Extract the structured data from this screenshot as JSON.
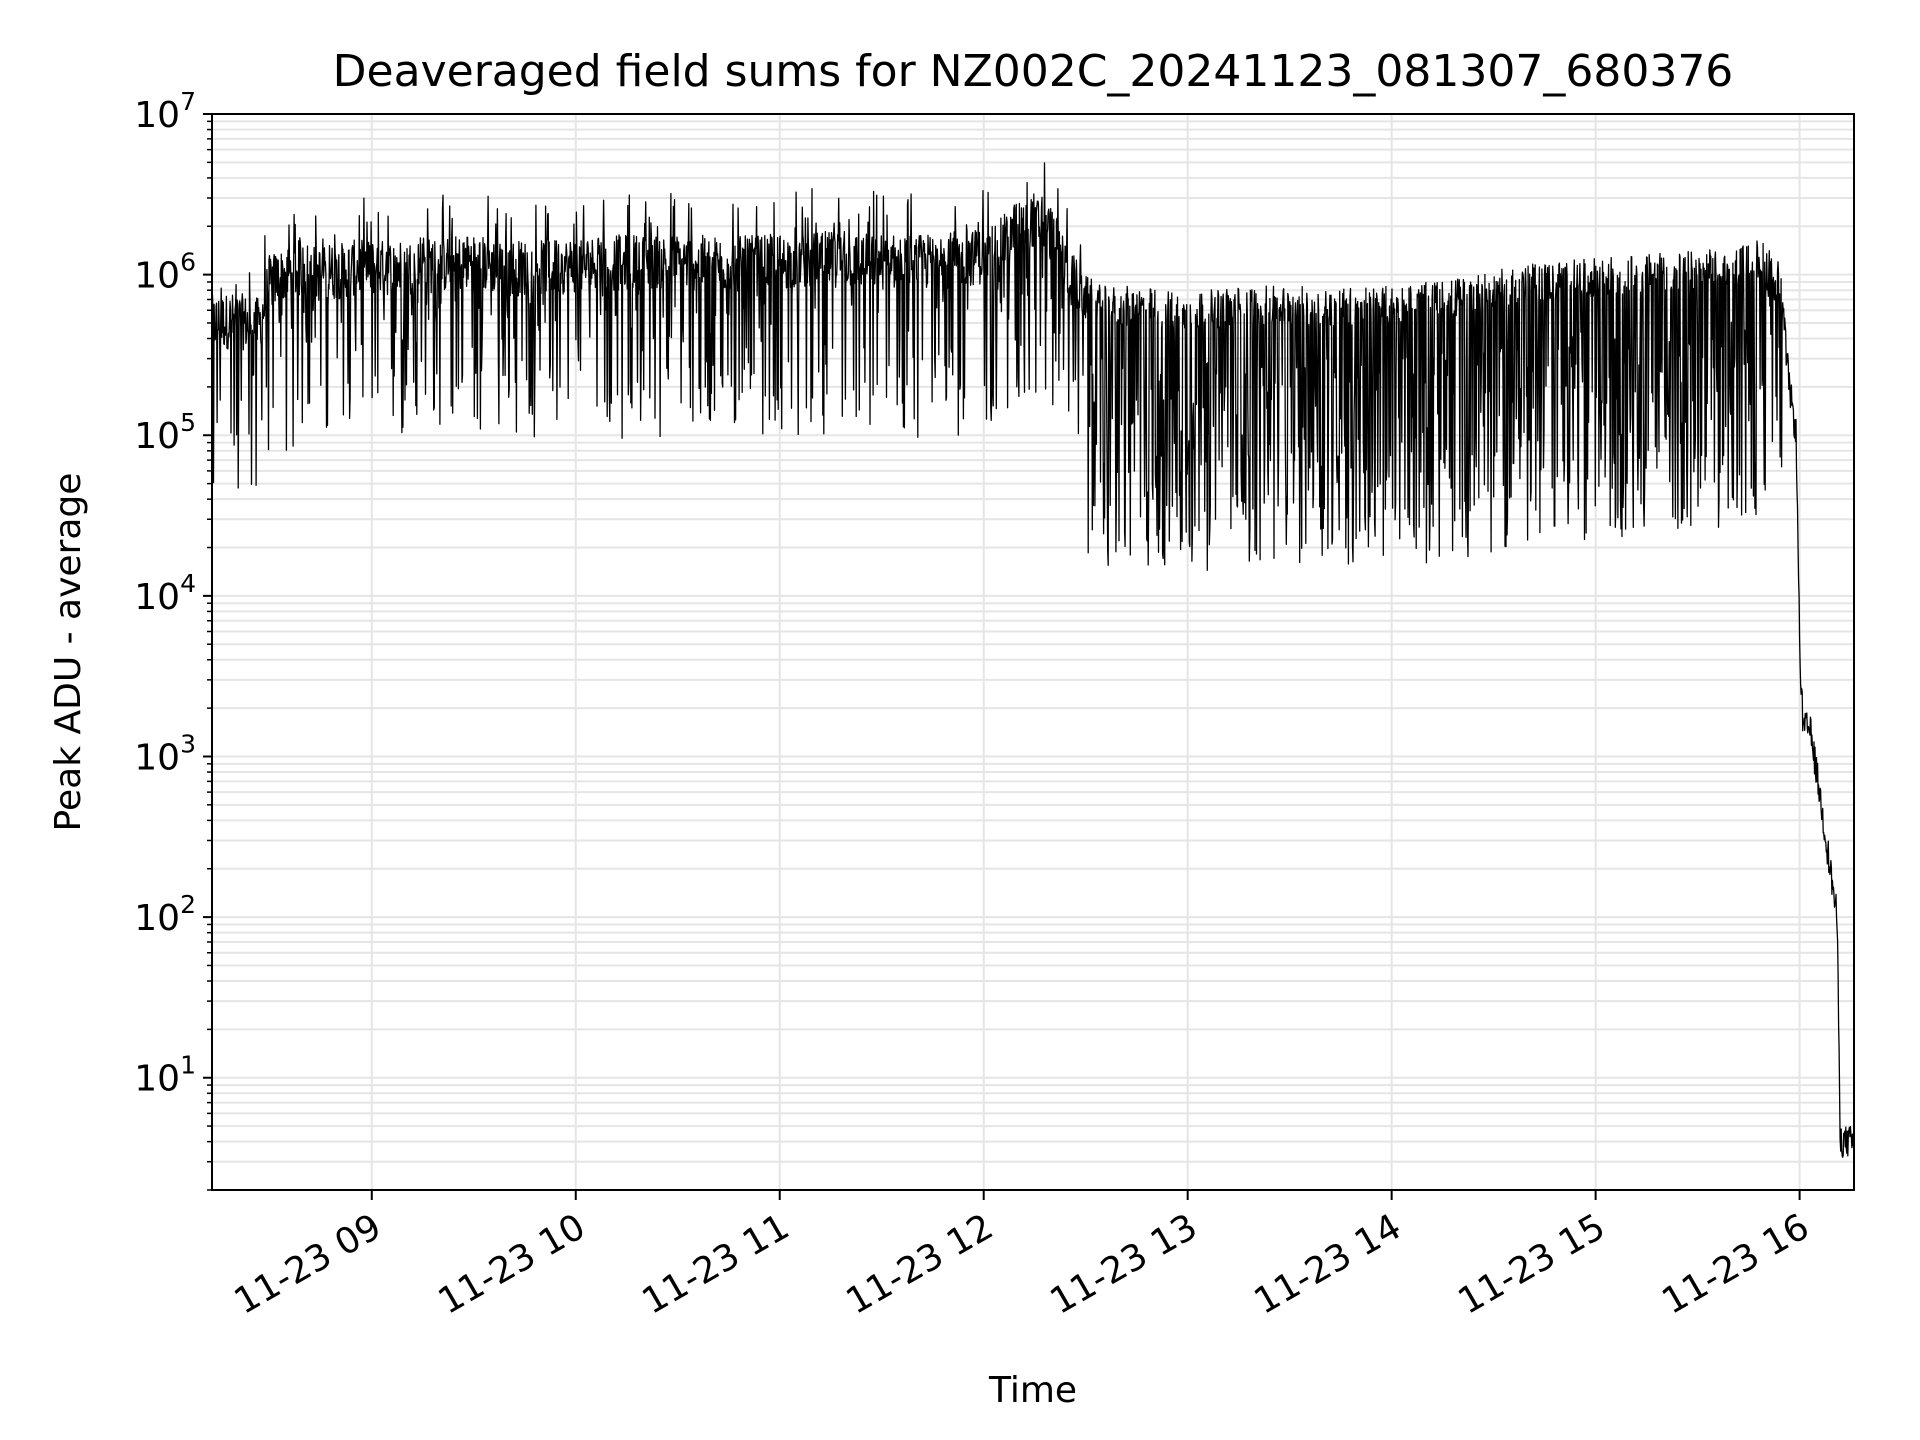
{
  "chart_data": {
    "type": "line",
    "title": "Deaveraged field sums for NZ002C_20241123_081307_680376",
    "xlabel": "Time",
    "ylabel": "Peak ADU - average",
    "yscale": "log",
    "ylim": [
      2,
      10000000
    ],
    "xlim": [
      "2024-11-23 08:13",
      "2024-11-23 16:16"
    ],
    "grid": true,
    "line_color": "#000000",
    "grid_color": "#e5e5e5",
    "x_ticks": [
      {
        "value": "2024-11-23 09:00",
        "label": "11-23 09"
      },
      {
        "value": "2024-11-23 10:00",
        "label": "11-23 10"
      },
      {
        "value": "2024-11-23 11:00",
        "label": "11-23 11"
      },
      {
        "value": "2024-11-23 12:00",
        "label": "11-23 12"
      },
      {
        "value": "2024-11-23 13:00",
        "label": "11-23 13"
      },
      {
        "value": "2024-11-23 14:00",
        "label": "11-23 14"
      },
      {
        "value": "2024-11-23 15:00",
        "label": "11-23 15"
      },
      {
        "value": "2024-11-23 16:00",
        "label": "11-23 16"
      }
    ],
    "y_ticks": [
      {
        "value": 10,
        "base": "10",
        "exp": "1"
      },
      {
        "value": 100,
        "base": "10",
        "exp": "2"
      },
      {
        "value": 1000,
        "base": "10",
        "exp": "3"
      },
      {
        "value": 10000,
        "base": "10",
        "exp": "4"
      },
      {
        "value": 100000,
        "base": "10",
        "exp": "5"
      },
      {
        "value": 1000000,
        "base": "10",
        "exp": "6"
      },
      {
        "value": 10000000,
        "base": "10",
        "exp": "7"
      }
    ],
    "series": [
      {
        "x": [
          "2024-11-23 08:13",
          "2024-11-23 08:20",
          "2024-11-23 08:27",
          "2024-11-23 08:30",
          "2024-11-23 08:35",
          "2024-11-23 08:40",
          "2024-11-23 08:45",
          "2024-11-23 08:50",
          "2024-11-23 08:55",
          "2024-11-23 09:00",
          "2024-11-23 09:10",
          "2024-11-23 09:20",
          "2024-11-23 09:30",
          "2024-11-23 09:40",
          "2024-11-23 09:50",
          "2024-11-23 10:00",
          "2024-11-23 10:15",
          "2024-11-23 10:30",
          "2024-11-23 10:45",
          "2024-11-23 11:00",
          "2024-11-23 11:15",
          "2024-11-23 11:30",
          "2024-11-23 11:45",
          "2024-11-23 12:00",
          "2024-11-23 12:05",
          "2024-11-23 12:10",
          "2024-11-23 12:15",
          "2024-11-23 12:20",
          "2024-11-23 12:25",
          "2024-11-23 12:30",
          "2024-11-23 12:35",
          "2024-11-23 12:45",
          "2024-11-23 13:00",
          "2024-11-23 13:15",
          "2024-11-23 13:30",
          "2024-11-23 13:45",
          "2024-11-23 14:00",
          "2024-11-23 14:15",
          "2024-11-23 14:30",
          "2024-11-23 14:45",
          "2024-11-23 15:00",
          "2024-11-23 15:15",
          "2024-11-23 15:30",
          "2024-11-23 15:40",
          "2024-11-23 15:45",
          "2024-11-23 15:48",
          "2024-11-23 15:52",
          "2024-11-23 15:55",
          "2024-11-23 15:57",
          "2024-11-23 15:59",
          "2024-11-23 16:00",
          "2024-11-23 16:01",
          "2024-11-23 16:03",
          "2024-11-23 16:05",
          "2024-11-23 16:07",
          "2024-11-23 16:09",
          "2024-11-23 16:11",
          "2024-11-23 16:12",
          "2024-11-23 16:13",
          "2024-11-23 16:14",
          "2024-11-23 16:16"
        ],
        "y": [
          500000,
          520000,
          480000,
          900000,
          1000000,
          1100000,
          1000000,
          1050000,
          1100000,
          1100000,
          1100000,
          1150000,
          1200000,
          1100000,
          1100000,
          1150000,
          1200000,
          1200000,
          1150000,
          1200000,
          1250000,
          1200000,
          1200000,
          1300000,
          1500000,
          2000000,
          2200000,
          1800000,
          1000000,
          700000,
          600000,
          600000,
          550000,
          600000,
          600000,
          600000,
          600000,
          650000,
          750000,
          850000,
          900000,
          950000,
          1000000,
          1050000,
          1100000,
          1200000,
          1000000,
          600000,
          200000,
          100000,
          5000,
          1500,
          1500,
          800,
          400,
          200,
          100,
          4,
          4,
          4,
          4
        ]
      }
    ]
  }
}
